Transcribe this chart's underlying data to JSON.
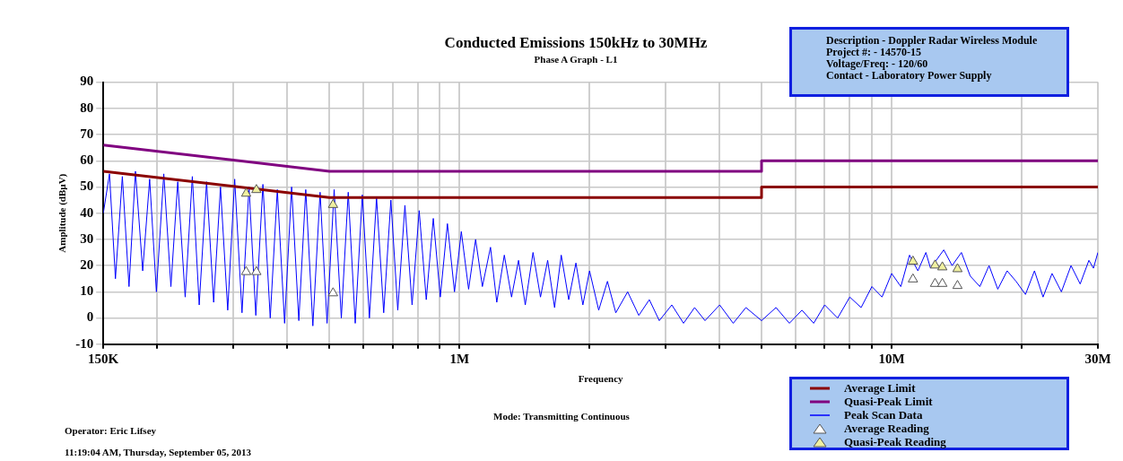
{
  "chart_data": {
    "type": "line",
    "title": "Conducted Emissions 150kHz to 30MHz",
    "subtitle": "Phase A Graph - L1",
    "xlabel": "Frequency",
    "ylabel": "Amplitude (dBµV)",
    "annotations": [
      "Description - Doppler Radar Wireless Module",
      "Project #: - 14570-15",
      "Voltage/Freq: - 120/60",
      "Contact - Laboratory Power Supply",
      "Mode: Transmitting Continuous",
      "Operator: Eric Lifsey",
      "11:19:04 AM, Thursday, September 05, 2013"
    ],
    "log": "x",
    "xlim": [
      150000,
      30000000
    ],
    "xticks": [
      {
        "value": 150000,
        "label": "150K"
      },
      {
        "value": 200000,
        "label": null
      },
      {
        "value": 300000,
        "label": null
      },
      {
        "value": 400000,
        "label": null
      },
      {
        "value": 500000,
        "label": null
      },
      {
        "value": 600000,
        "label": null
      },
      {
        "value": 700000,
        "label": null
      },
      {
        "value": 800000,
        "label": null
      },
      {
        "value": 900000,
        "label": null
      },
      {
        "value": 1000000,
        "label": "1M"
      },
      {
        "value": 2000000,
        "label": null
      },
      {
        "value": 3000000,
        "label": null
      },
      {
        "value": 4000000,
        "label": null
      },
      {
        "value": 5000000,
        "label": null
      },
      {
        "value": 6000000,
        "label": null
      },
      {
        "value": 7000000,
        "label": null
      },
      {
        "value": 8000000,
        "label": null
      },
      {
        "value": 9000000,
        "label": null
      },
      {
        "value": 10000000,
        "label": "10M"
      },
      {
        "value": 20000000,
        "label": null
      },
      {
        "value": 30000000,
        "label": "30M"
      }
    ],
    "ylim": [
      -10,
      90
    ],
    "yticks": [
      -10,
      0,
      10,
      20,
      30,
      40,
      50,
      60,
      70,
      80,
      90
    ],
    "grid": true,
    "legend": "bottom right",
    "series": [
      {
        "name": "Average Limit",
        "color": "#8b0000",
        "type": "line",
        "marker": "none",
        "x": [
          150000,
          500000,
          5000000,
          5000000,
          30000000
        ],
        "values": [
          56,
          46,
          46,
          50,
          50
        ]
      },
      {
        "name": "Quasi-Peak Limit",
        "color": "#800080",
        "type": "line",
        "marker": "none",
        "x": [
          150000,
          500000,
          5000000,
          5000000,
          30000000
        ],
        "values": [
          66,
          56,
          56,
          60,
          60
        ]
      },
      {
        "name": "Peak Scan Data",
        "color": "#0000ff",
        "type": "line",
        "marker": "none",
        "x": [
          150000,
          155000,
          160000,
          166000,
          172000,
          178000,
          185000,
          192000,
          199000,
          207000,
          215000,
          223000,
          232000,
          241000,
          250000,
          260000,
          270000,
          280000,
          291000,
          302000,
          314000,
          326000,
          338000,
          351000,
          365000,
          379000,
          394000,
          409000,
          425000,
          441000,
          458000,
          476000,
          494000,
          513000,
          533000,
          553000,
          574000,
          596000,
          619000,
          643000,
          668000,
          694000,
          720000,
          748000,
          777000,
          807000,
          838000,
          870000,
          903000,
          938000,
          974000,
          1010000,
          1050000,
          1090000,
          1130000,
          1180000,
          1220000,
          1270000,
          1320000,
          1370000,
          1420000,
          1480000,
          1540000,
          1600000,
          1660000,
          1720000,
          1790000,
          1860000,
          1930000,
          2000000,
          2100000,
          2200000,
          2300000,
          2450000,
          2600000,
          2750000,
          2900000,
          3100000,
          3300000,
          3500000,
          3700000,
          4000000,
          4300000,
          4600000,
          5000000,
          5400000,
          5800000,
          6200000,
          6600000,
          7000000,
          7500000,
          8000000,
          8500000,
          9000000,
          9500000,
          10000000,
          10500000,
          11000000,
          11500000,
          12000000,
          12300000,
          13200000,
          13800000,
          14500000,
          15200000,
          16000000,
          16800000,
          17600000,
          18500000,
          19400000,
          20400000,
          21400000,
          22400000,
          23500000,
          24700000,
          26000000,
          27300000,
          28600000,
          29300000,
          30000000
        ],
        "values": [
          40,
          55,
          15,
          54,
          12,
          56,
          18,
          53,
          10,
          55,
          12,
          52,
          8,
          54,
          5,
          52,
          6,
          50,
          3,
          53,
          2,
          50,
          1,
          51,
          0,
          49,
          -2,
          50,
          -1,
          49,
          -3,
          48,
          -2,
          49,
          0,
          48,
          -2,
          47,
          0,
          46,
          2,
          45,
          3,
          43,
          5,
          41,
          7,
          38,
          8,
          36,
          10,
          33,
          11,
          30,
          12,
          27,
          6,
          24,
          8,
          22,
          5,
          25,
          8,
          22,
          4,
          24,
          7,
          21,
          5,
          18,
          3,
          14,
          2,
          10,
          1,
          7,
          -1,
          5,
          -2,
          4,
          -1,
          5,
          -2,
          4,
          -1,
          4,
          -2,
          3,
          -2,
          5,
          0,
          8,
          4,
          12,
          8,
          17,
          12,
          24,
          18,
          25,
          19,
          26,
          20,
          25,
          16,
          12,
          20,
          11,
          18,
          14,
          9,
          18,
          8,
          17,
          10,
          20,
          13,
          22,
          19,
          25
        ]
      },
      {
        "name": "Average Reading",
        "color": "#ffffff",
        "type": "scatter",
        "marker": "triangle",
        "x": [
          321000,
          339000,
          510000,
          11200000,
          12600000,
          13100000,
          14200000
        ],
        "values": [
          17.6,
          17.6,
          9.5,
          14.8,
          13.1,
          13.1,
          12.3
        ]
      },
      {
        "name": "Quasi-Peak Reading",
        "color": "#f0f0a0",
        "type": "scatter",
        "marker": "triangle",
        "x": [
          321000,
          339000,
          510000,
          11200000,
          12600000,
          13100000,
          14200000
        ],
        "values": [
          47.5,
          48.9,
          43.2,
          21.6,
          20.1,
          19.4,
          18.7
        ]
      }
    ]
  }
}
